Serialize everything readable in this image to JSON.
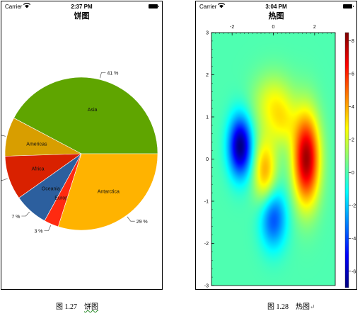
{
  "left_phone": {
    "status": {
      "carrier": "Carrier",
      "time": "2:37 PM"
    },
    "title": "饼图"
  },
  "right_phone": {
    "status": {
      "carrier": "Carrier",
      "time": "3:04 PM"
    },
    "title": "热图"
  },
  "captions": {
    "left": {
      "number": "图 1.27",
      "title": "饼图"
    },
    "right": {
      "number": "图 1.28",
      "title": "热图",
      "suffix": "↵"
    }
  },
  "chart_data": [
    {
      "type": "pie",
      "start_angle_deg": 0,
      "direction": "counterclockwise",
      "slices": [
        {
          "label": "Asia",
          "value": 41,
          "color": "#5fa500",
          "pct_label": "41 %"
        },
        {
          "label": "Americas",
          "value": 8,
          "color": "#d89e00",
          "pct_label": ""
        },
        {
          "label": "Africa",
          "value": 9,
          "color": "#d92100",
          "pct_label": ""
        },
        {
          "label": "Oceania",
          "value": 7,
          "color": "#2c5f9e",
          "pct_label": "7 %"
        },
        {
          "label": "Europe",
          "value": 3,
          "color": "#ff2a10",
          "pct_label": "3 %"
        },
        {
          "label": "Antarctica",
          "value": 29,
          "color": "#ffb300",
          "pct_label": "29 %"
        }
      ]
    },
    {
      "type": "heatmap",
      "x_range": [
        -3,
        3
      ],
      "y_range": [
        -3,
        3
      ],
      "x_ticks": [
        -2,
        0,
        2
      ],
      "y_ticks": [
        -3,
        -2,
        -1,
        0,
        1,
        2,
        3
      ],
      "z_range": [
        -7,
        8.5
      ],
      "colorbar_ticks": [
        8,
        6,
        4,
        2,
        0,
        -2,
        -4,
        -6
      ],
      "colormap": "jet",
      "features": [
        {
          "x": 1.6,
          "y": 0.0,
          "sx": 0.45,
          "sy": 0.75,
          "z": 8.0
        },
        {
          "x": -1.6,
          "y": 0.3,
          "sx": 0.4,
          "sy": 0.5,
          "z": -7.0
        },
        {
          "x": 0.0,
          "y": -1.4,
          "sx": 0.45,
          "sy": 0.5,
          "z": -4.0
        },
        {
          "x": 0.0,
          "y": 1.3,
          "sx": 0.7,
          "sy": 0.5,
          "z": 2.5
        },
        {
          "x": -0.4,
          "y": -0.3,
          "sx": 0.4,
          "sy": 0.55,
          "z": 4.0
        },
        {
          "x": 0.5,
          "y": 0.8,
          "sx": 0.45,
          "sy": 0.4,
          "z": 1.5
        }
      ]
    }
  ]
}
